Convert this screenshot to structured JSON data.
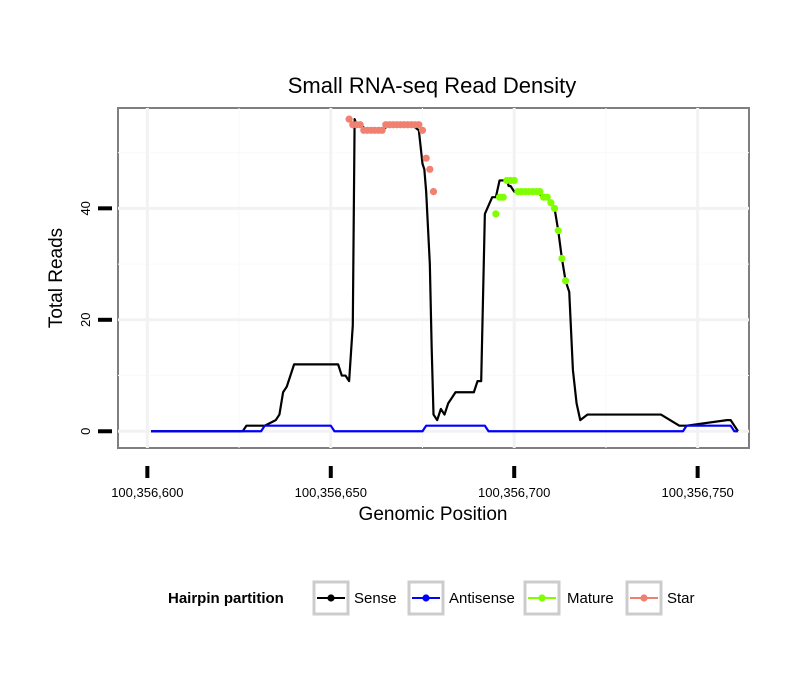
{
  "chart_data": {
    "type": "line",
    "title": "Small RNA-seq Read Density",
    "xlabel": "Genomic Position",
    "ylabel": "Total Reads",
    "xlim": [
      100356592,
      100356764
    ],
    "ylim": [
      -3,
      58
    ],
    "x_ticks": [
      100356600,
      100356650,
      100356700,
      100356750
    ],
    "x_tick_labels": [
      "100,356,600",
      "100,356,650",
      "100,356,700",
      "100,356,750"
    ],
    "y_ticks": [
      0,
      20,
      40
    ],
    "y_tick_labels": [
      "0",
      "20",
      "40"
    ],
    "grid": true,
    "legend": {
      "title": "Hairpin partition",
      "position": "bottom",
      "entries": [
        {
          "name": "Sense",
          "color": "#000000"
        },
        {
          "name": "Antisense",
          "color": "#0000ff"
        },
        {
          "name": "Mature",
          "color": "#7fff00"
        },
        {
          "name": "Star",
          "color": "#f08070"
        }
      ]
    },
    "series": [
      {
        "name": "Sense",
        "color": "#000000",
        "marker": false,
        "x": [
          100356601,
          100356626,
          100356627,
          100356632,
          100356635,
          100356636,
          100356637,
          100356638,
          100356640,
          100356652,
          100356653,
          100356654,
          100356655,
          100356656,
          100356656.5,
          100356657,
          100356658,
          100356660,
          100356662,
          100356664,
          100356666,
          100356668,
          100356670,
          100356672,
          100356674,
          100356675,
          100356675.5,
          100356676,
          100356677,
          100356677.5,
          100356678,
          100356679,
          100356680,
          100356681,
          100356682,
          100356683,
          100356684,
          100356685,
          100356687,
          100356688,
          100356689,
          100356690,
          100356691,
          100356692,
          100356694,
          100356695,
          100356696,
          100356697,
          100356698,
          100356698.5,
          100356699,
          100356700,
          100356702,
          100356704,
          100356706,
          100356708,
          100356709,
          100356710,
          100356711,
          100356712,
          100356713,
          100356714,
          100356715,
          100356716,
          100356717,
          100356718,
          100356720,
          100356725,
          100356730,
          100356740,
          100356745,
          100356746,
          100356747,
          100356758,
          100356759,
          100356761
        ],
        "values": [
          0,
          0,
          1,
          1,
          2,
          3,
          7,
          8,
          12,
          12,
          10,
          10,
          9,
          19,
          56,
          55,
          55,
          54,
          54,
          54,
          55,
          55,
          55,
          55,
          54,
          48,
          47,
          43,
          30,
          15,
          3,
          2,
          4,
          3,
          5,
          6,
          7,
          7,
          7,
          7,
          7,
          9,
          9,
          39,
          42,
          42,
          45,
          45,
          45,
          44,
          44,
          43,
          43,
          43,
          43,
          42,
          42,
          41,
          40,
          36,
          31,
          27,
          25,
          11,
          5,
          2,
          3,
          3,
          3,
          3,
          1,
          1,
          1,
          2,
          2,
          0
        ]
      },
      {
        "name": "Antisense",
        "color": "#0000ff",
        "marker": false,
        "x": [
          100356601,
          100356631,
          100356632,
          100356650,
          100356651,
          100356675,
          100356676,
          100356692,
          100356693,
          100356746,
          100356747,
          100356759,
          100356760,
          100356761
        ],
        "values": [
          0,
          0,
          1,
          1,
          0,
          0,
          1,
          1,
          0,
          0,
          1,
          1,
          0,
          0
        ]
      },
      {
        "name": "Mature",
        "color": "#7fff00",
        "marker": true,
        "x": [
          100356695,
          100356696,
          100356697,
          100356698,
          100356699,
          100356700,
          100356701,
          100356702,
          100356703,
          100356704,
          100356705,
          100356706,
          100356707,
          100356708,
          100356709,
          100356710,
          100356711,
          100356712,
          100356713,
          100356714
        ],
        "values": [
          39,
          42,
          42,
          45,
          45,
          45,
          43,
          43,
          43,
          43,
          43,
          43,
          43,
          42,
          42,
          41,
          40,
          36,
          31,
          27
        ]
      },
      {
        "name": "Star",
        "color": "#f08070",
        "marker": true,
        "x": [
          100356655,
          100356656,
          100356657,
          100356658,
          100356659,
          100356660,
          100356661,
          100356662,
          100356663,
          100356664,
          100356665,
          100356666,
          100356667,
          100356668,
          100356669,
          100356670,
          100356671,
          100356672,
          100356673,
          100356674,
          100356675,
          100356676,
          100356677,
          100356678
        ],
        "values": [
          56,
          55,
          55,
          55,
          54,
          54,
          54,
          54,
          54,
          54,
          55,
          55,
          55,
          55,
          55,
          55,
          55,
          55,
          55,
          55,
          54,
          49,
          47,
          43
        ]
      }
    ]
  }
}
